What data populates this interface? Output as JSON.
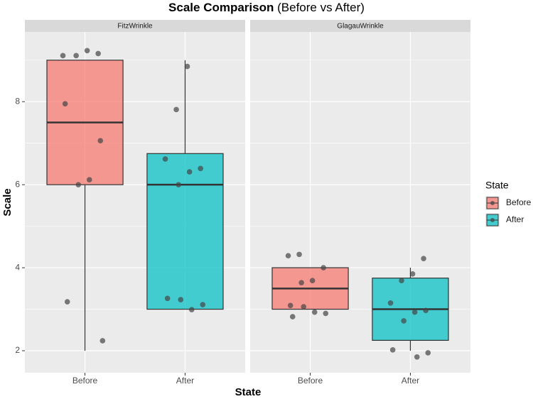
{
  "chart_data": {
    "type": "box",
    "title": "Scale Comparison",
    "subtitle": "(Before vs After)",
    "x_label": "State",
    "y_label": "Scale",
    "legend_title": "State",
    "legend_position": "right",
    "grid": true,
    "categories": [
      "Before",
      "After"
    ],
    "series": [
      {
        "name": "Before",
        "color": "#F8766D"
      },
      {
        "name": "After",
        "color": "#00BFC4"
      }
    ],
    "ylim": [
      1.47,
      9.68
    ],
    "yticks": [
      2,
      4,
      6,
      8
    ],
    "facets": [
      {
        "name": "FitzWrinkle",
        "boxes": [
          {
            "min": 2,
            "q1": 6,
            "median": 7.5,
            "q3": 9,
            "max": 9,
            "points": [
              9.11,
              9.16,
              9.23,
              9.11,
              7.95,
              7.06,
              6.12,
              6.0,
              3.18,
              2.24
            ]
          },
          {
            "min": 3,
            "q1": 3,
            "median": 6,
            "q3": 6.75,
            "max": 9,
            "points": [
              8.85,
              7.81,
              6.62,
              6.39,
              6.31,
              6.0,
              3.26,
              3.11,
              2.99,
              3.23
            ]
          }
        ]
      },
      {
        "name": "GlagauWrinkle",
        "boxes": [
          {
            "min": 3,
            "q1": 3,
            "median": 3.5,
            "q3": 4,
            "max": 4,
            "points": [
              4.32,
              4.29,
              4.0,
              3.69,
              3.64,
              3.09,
              2.9,
              2.93,
              3.06,
              2.82
            ]
          },
          {
            "min": 2,
            "q1": 2.25,
            "median": 3,
            "q3": 3.75,
            "max": 4,
            "points": [
              4.22,
              3.85,
              3.69,
              3.15,
              2.97,
              2.93,
              2.72,
              2.02,
              1.95,
              1.85
            ]
          }
        ]
      }
    ]
  }
}
